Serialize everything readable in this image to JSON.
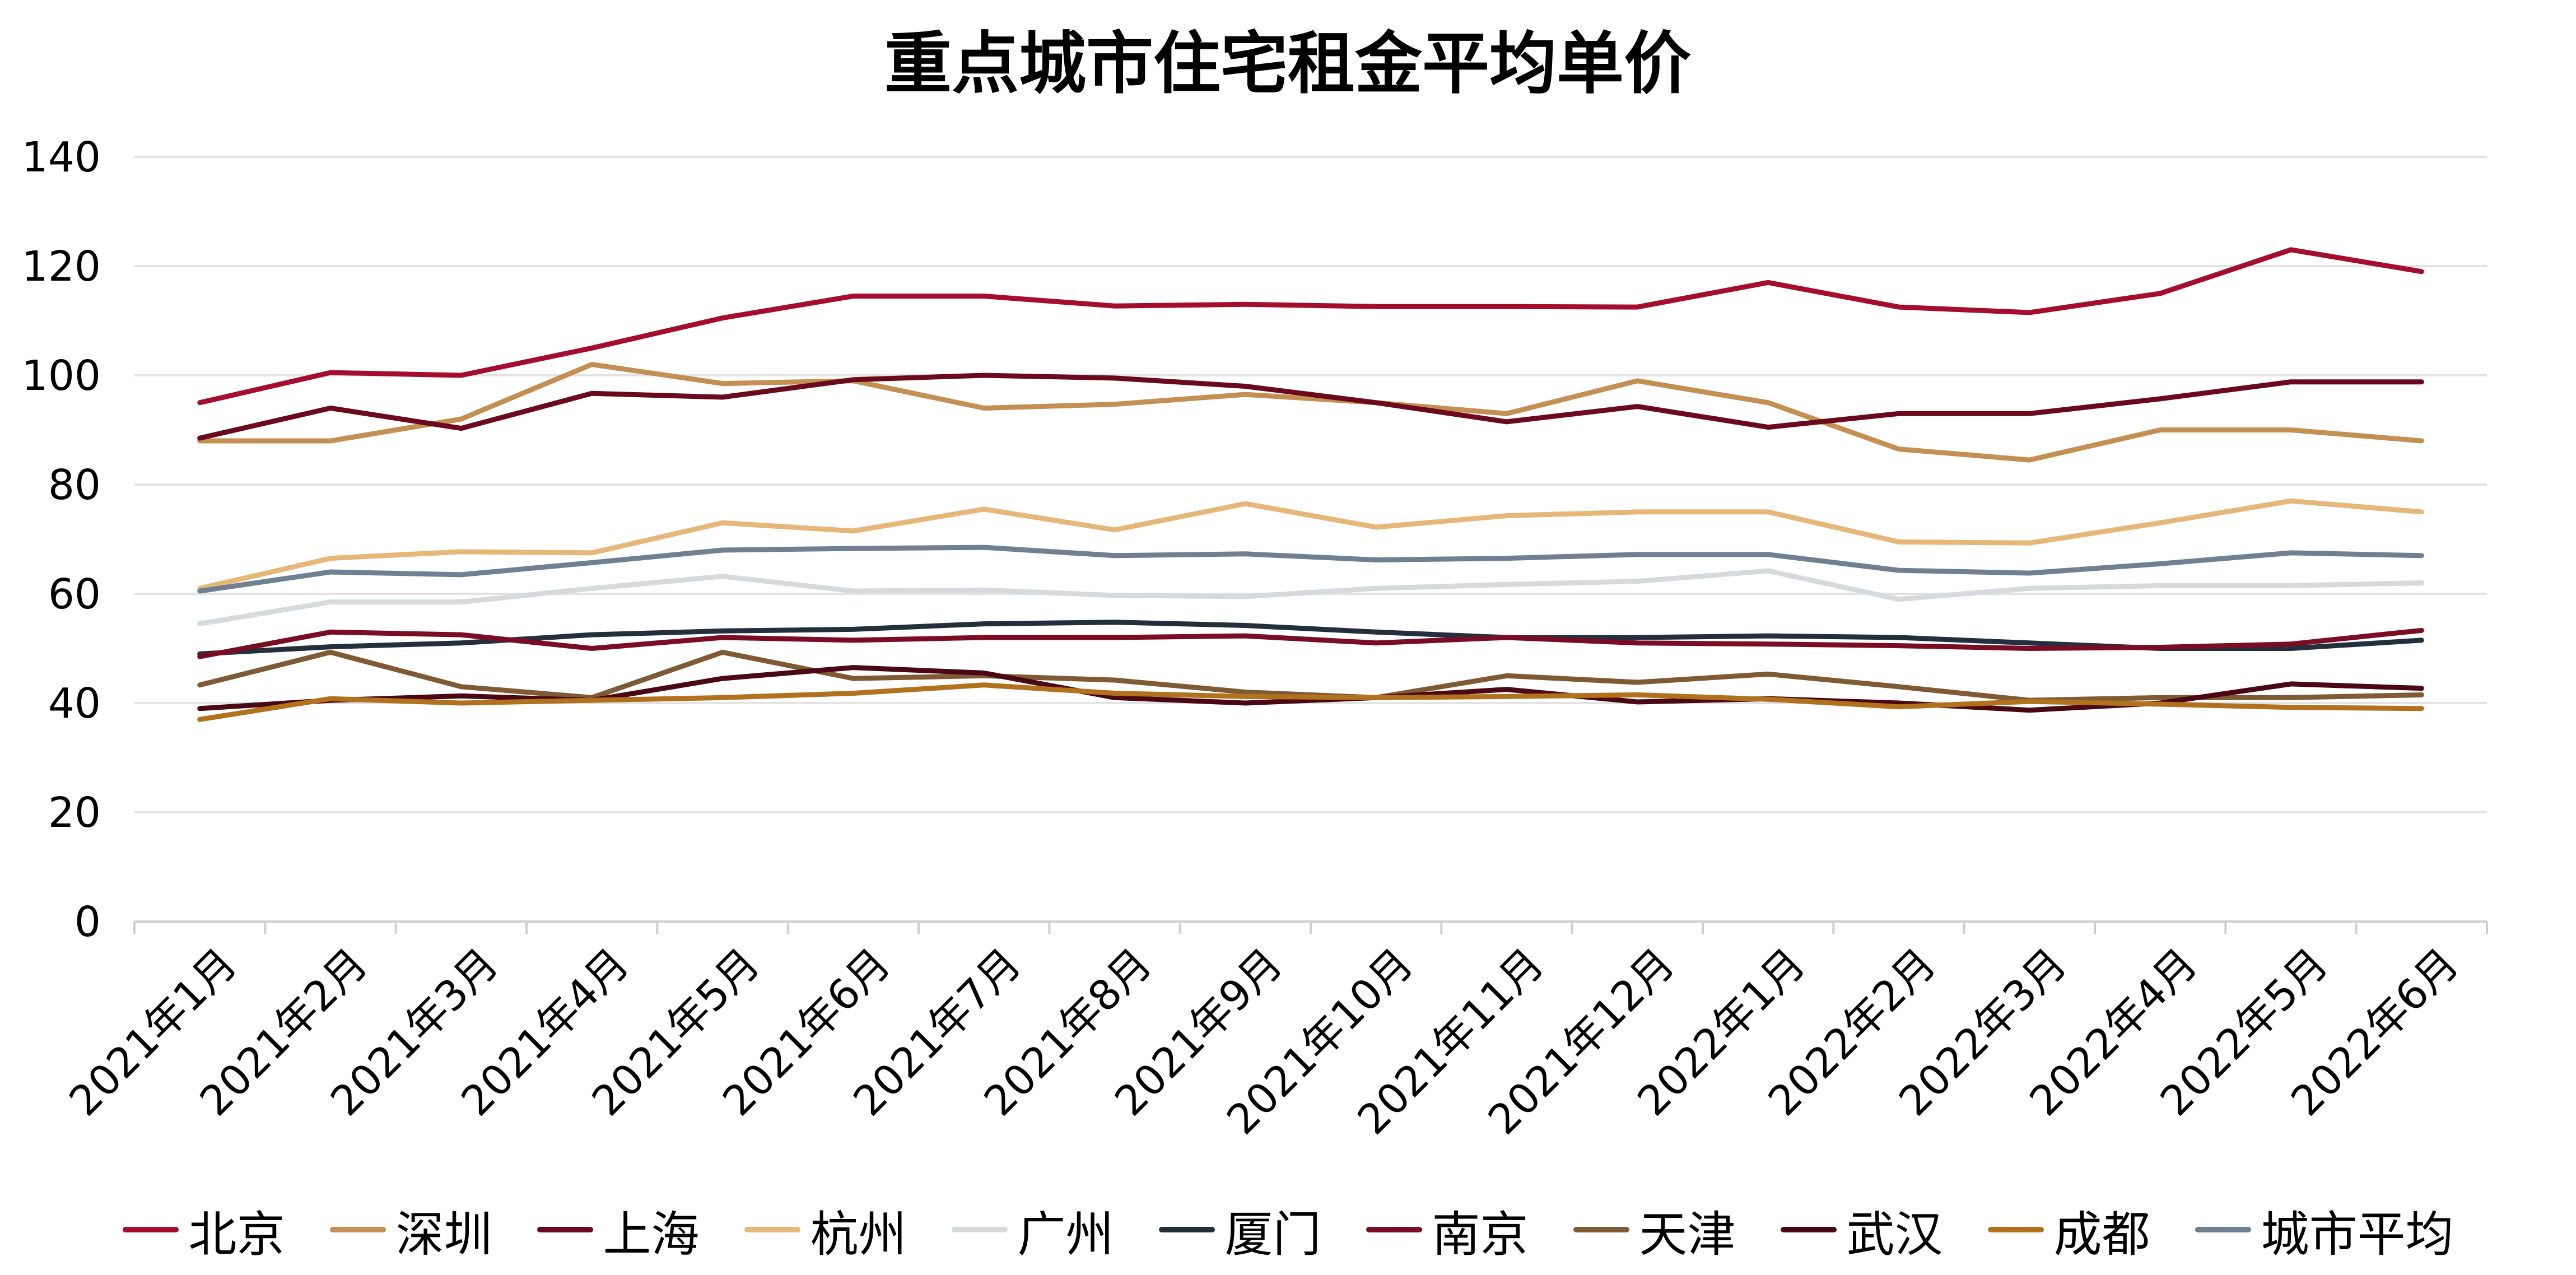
{
  "chart_data": {
    "type": "line",
    "title": "重点城市住宅租金平均单价",
    "xlabel": "",
    "ylabel": "",
    "ylim": [
      0,
      140
    ],
    "yticks": [
      0,
      20,
      40,
      60,
      80,
      100,
      120,
      140
    ],
    "grid": true,
    "legend_position": "bottom",
    "categories": [
      "2021年1月",
      "2021年2月",
      "2021年3月",
      "2021年4月",
      "2021年5月",
      "2021年6月",
      "2021年7月",
      "2021年8月",
      "2021年9月",
      "2021年10月",
      "2021年11月",
      "2021年12月",
      "2022年1月",
      "2022年2月",
      "2022年3月",
      "2022年4月",
      "2022年5月",
      "2022年6月"
    ],
    "series": [
      {
        "name": "北京",
        "color": "#a50d2c",
        "values": [
          95,
          100.5,
          100,
          105,
          110.5,
          114.5,
          114.5,
          112.7,
          113,
          112.6,
          112.6,
          112.5,
          117,
          112.5,
          111.5,
          115,
          123,
          119
        ]
      },
      {
        "name": "深圳",
        "color": "#c38f52",
        "values": [
          88,
          88,
          92,
          102,
          98.5,
          99,
          94,
          94.7,
          96.5,
          95,
          93,
          99,
          95,
          86.5,
          84.5,
          90,
          90,
          88
        ]
      },
      {
        "name": "上海",
        "color": "#6b0a1c",
        "values": [
          88.5,
          94,
          90.3,
          96.7,
          96,
          99.2,
          100,
          99.5,
          98,
          95,
          91.5,
          94.3,
          90.5,
          93,
          93,
          95.7,
          98.8,
          98.8
        ]
      },
      {
        "name": "杭州",
        "color": "#e6b778",
        "values": [
          61,
          66.5,
          67.7,
          67.5,
          73,
          71.5,
          75.5,
          71.7,
          76.5,
          72.2,
          74.3,
          75,
          75,
          69.5,
          69.3,
          73,
          77,
          75
        ]
      },
      {
        "name": "广州",
        "color": "#d5dade",
        "values": [
          54.5,
          58.5,
          58.5,
          61,
          63.2,
          60.5,
          60.7,
          59.7,
          59.5,
          61,
          61.7,
          62.3,
          64.2,
          59,
          61,
          61.5,
          61.5,
          62
        ]
      },
      {
        "name": "厦门",
        "color": "#242f3d",
        "values": [
          49,
          50.3,
          51,
          52.5,
          53.2,
          53.5,
          54.5,
          54.8,
          54.2,
          53,
          52,
          52,
          52.3,
          52,
          51,
          50,
          50,
          51.5
        ]
      },
      {
        "name": "南京",
        "color": "#7a0d24",
        "values": [
          48.5,
          53,
          52.5,
          50,
          52,
          51.5,
          52,
          52,
          52.3,
          51,
          52,
          51,
          50.8,
          50.5,
          50,
          50.2,
          50.8,
          53.3
        ]
      },
      {
        "name": "天津",
        "color": "#7f5a34",
        "values": [
          43.3,
          49.3,
          43,
          41,
          49.3,
          44.5,
          45,
          44.2,
          42,
          41,
          45,
          43.8,
          45.3,
          43,
          40.5,
          41,
          41,
          41.5
        ]
      },
      {
        "name": "武汉",
        "color": "#4a0714",
        "values": [
          39,
          40.5,
          41.3,
          40.5,
          44.5,
          46.5,
          45.5,
          41,
          40,
          41,
          42.5,
          40.2,
          40.8,
          40,
          38.7,
          40,
          43.5,
          42.7
        ]
      },
      {
        "name": "成都",
        "color": "#b2711d",
        "values": [
          37,
          40.8,
          40,
          40.5,
          41,
          41.8,
          43.3,
          41.8,
          41.2,
          41,
          41.2,
          41.5,
          40.7,
          39.3,
          40.3,
          39.8,
          39.2,
          39
        ]
      },
      {
        "name": "城市平均",
        "color": "#6f8090",
        "values": [
          60.5,
          64,
          63.5,
          65.7,
          68,
          68.3,
          68.5,
          67,
          67.3,
          66.2,
          66.5,
          67.2,
          67.2,
          64.3,
          63.8,
          65.5,
          67.5,
          67
        ]
      }
    ]
  }
}
